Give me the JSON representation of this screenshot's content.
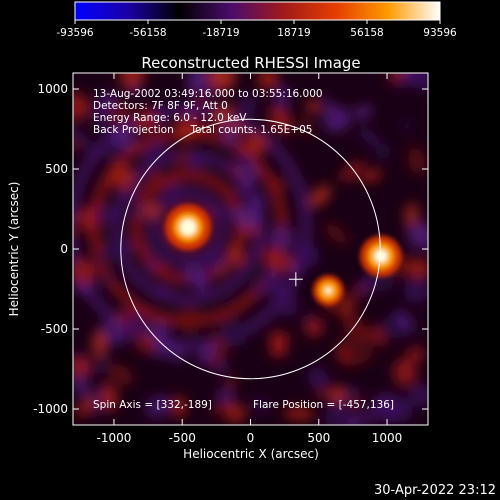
{
  "chart_data": {
    "type": "heatmap",
    "title": "Reconstructed RHESSI Image",
    "xlabel": "Heliocentric X (arcsec)",
    "ylabel": "Heliocentric Y (arcsec)",
    "xlim": [
      -1300,
      1300
    ],
    "ylim": [
      -1100,
      1100
    ],
    "xticks": [
      -1000,
      -500,
      0,
      500,
      1000
    ],
    "yticks": [
      -1000,
      -500,
      0,
      500,
      1000
    ],
    "colorbar": {
      "range": [
        -93596,
        93596
      ],
      "tick_values": [
        -93596,
        -56158,
        -18719,
        18719,
        56158,
        93596
      ],
      "tick_labels": [
        "-93596",
        "-56158",
        "-18719",
        "18719",
        "56158",
        "93596"
      ],
      "colors": [
        "#0000ff",
        "#1a00a8",
        "#000000",
        "#4b0d6b",
        "#a01a1a",
        "#e53d00",
        "#ff9a00",
        "#ffffff"
      ]
    },
    "info_lines": [
      "13-Aug-2002 03:49:16.000 to 03:55:16.000",
      "Detectors: 7F 8F 9F, Att 0",
      "Energy Range: 6.0 - 12.0 keV",
      "Back Projection     Total counts: 1.65E+05"
    ],
    "footer_left": "Spin Axis = [332,-189]",
    "footer_right": "Flare Position = [-457,136]",
    "timestamp": "30-Apr-2022 23:12",
    "solar_limb_radius": 950,
    "spin_axis": [
      332,
      -189
    ],
    "sources": [
      {
        "x": -457,
        "y": 136,
        "level": 1.0
      },
      {
        "x": 955,
        "y": -45,
        "level": 0.85
      },
      {
        "x": 570,
        "y": -260,
        "level": 0.45
      }
    ]
  }
}
